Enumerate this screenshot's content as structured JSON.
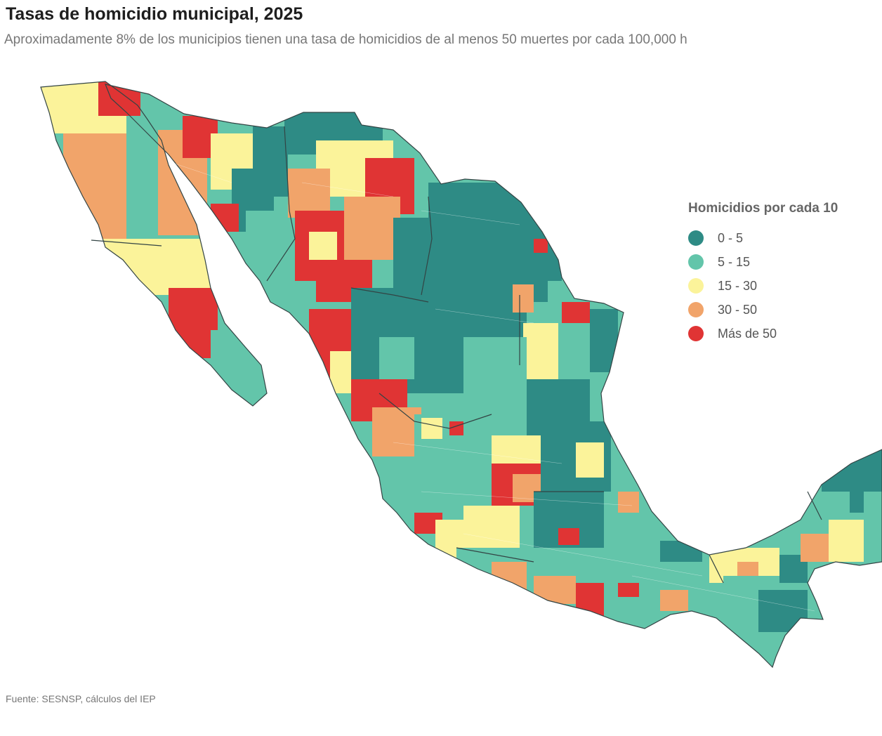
{
  "title": "Tasas de homicidio municipal, 2025",
  "subtitle": "Aproximadamente 8% de los municipios tienen una tasa de homicidios de al menos 50 muertes por cada 100,000 h",
  "legend": {
    "title": "Homicidios por cada 10",
    "items": [
      {
        "label": "0 - 5",
        "color": "#2e8b85"
      },
      {
        "label": "5 - 15",
        "color": "#63c5aa"
      },
      {
        "label": "15 - 30",
        "color": "#fbf39a"
      },
      {
        "label": "30 - 50",
        "color": "#f1a46a"
      },
      {
        "label": "Más de 50",
        "color": "#e03434"
      }
    ]
  },
  "source": "Fuente: SESNSP, cálculos del IEP"
}
